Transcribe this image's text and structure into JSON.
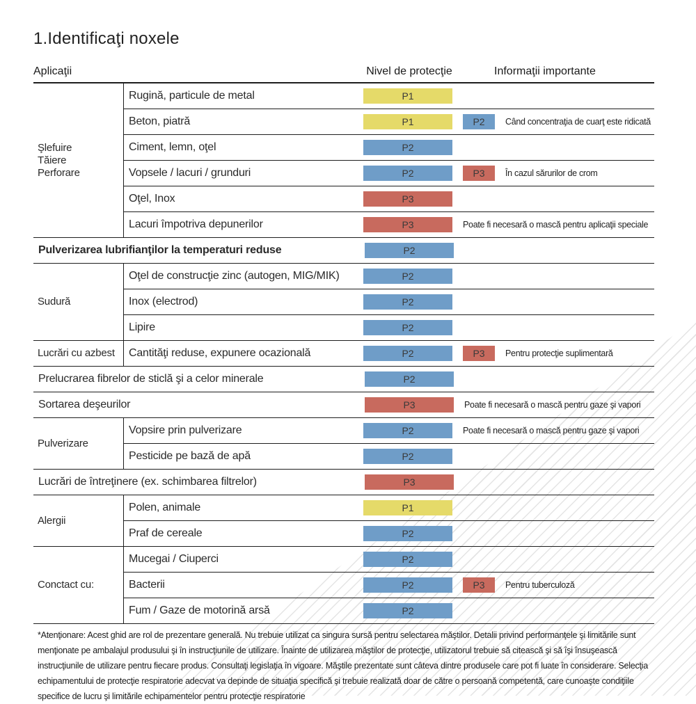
{
  "title": "1.Identificaţi noxele",
  "columns": {
    "applications": "Aplicaţii",
    "protection": "Nivel de protecţie",
    "info": "Informaţii importante"
  },
  "levels": {
    "P1": "#e5da69",
    "P2": "#6f9dc8",
    "P3": "#c86a5e"
  },
  "sections": [
    {
      "group": "Şlefuire\nTăiere\nPerforare",
      "rows": [
        {
          "label": "Rugină, particule de metal",
          "level": "P1"
        },
        {
          "label": "Beton, piatră",
          "level": "P1",
          "extra": "P2",
          "info": "Când concentraţia de cuarţ este ridicată"
        },
        {
          "label": "Ciment, lemn, oţel",
          "level": "P2"
        },
        {
          "label": "Vopsele / lacuri / grunduri",
          "level": "P2",
          "extra": "P3",
          "info": "În cazul sărurilor de crom"
        },
        {
          "label": "Oţel, Inox",
          "level": "P3"
        },
        {
          "label": "Lacuri împotriva depunerilor",
          "level": "P3",
          "info": "Poate fi necesară o mască pentru aplicaţii speciale"
        }
      ]
    },
    {
      "group": null,
      "rows": [
        {
          "label": "Pulverizarea lubrifianţilor la temperaturi reduse",
          "level": "P2",
          "bold": true
        }
      ]
    },
    {
      "group": "Sudură",
      "rows": [
        {
          "label": "Oţel de construcţie zinc (autogen, MIG/MIK)",
          "level": "P2"
        },
        {
          "label": "Inox (electrod)",
          "level": "P2"
        },
        {
          "label": "Lipire",
          "level": "P2"
        }
      ]
    },
    {
      "group": "Lucrări cu azbest",
      "rows": [
        {
          "label": "Cantităţi reduse, expunere ocazională",
          "level": "P2",
          "extra": "P3",
          "info": "Pentru protecţie suplimentară"
        }
      ]
    },
    {
      "group": null,
      "rows": [
        {
          "label": "Prelucrarea fibrelor de sticlă şi a celor minerale",
          "level": "P2"
        }
      ]
    },
    {
      "group": null,
      "rows": [
        {
          "label": "Sortarea deşeurilor",
          "level": "P3",
          "info": "Poate fi necesară o mască pentru gaze şi vapori"
        }
      ]
    },
    {
      "group": "Pulverizare",
      "rows": [
        {
          "label": "Vopsire prin pulverizare",
          "level": "P2",
          "info": "Poate fi necesară o mască pentru gaze şi vapori"
        },
        {
          "label": "Pesticide pe bază de apă",
          "level": "P2"
        }
      ]
    },
    {
      "group": null,
      "rows": [
        {
          "label": "Lucrări de întreţinere (ex. schimbarea filtrelor)",
          "level": "P3"
        }
      ]
    },
    {
      "group": "Alergii",
      "rows": [
        {
          "label": "Polen, animale",
          "level": "P1"
        },
        {
          "label": "Praf de cereale",
          "level": "P2"
        }
      ]
    },
    {
      "group": "Conctact cu:",
      "rows": [
        {
          "label": "Mucegai / Ciuperci",
          "level": "P2"
        },
        {
          "label": "Bacterii",
          "level": "P2",
          "extra": "P3",
          "info": "Pentru tuberculoză"
        },
        {
          "label": "Fum / Gaze de motorină arsă",
          "level": "P2"
        }
      ]
    }
  ],
  "footnote": "*Atenţionare: Acest ghid are rol de prezentare generală. Nu trebuie utilizat ca singura sursă pentru selectarea măştilor. Detalii privind performanţele şi limitările sunt menţionate pe ambalajul produsului şi în instrucţiunile de utilizare. Înainte de utilizarea măştilor de protecţie, utilizatorul trebuie să citească şi să îşi însuşească instrucţiunile de utilizare pentru fiecare produs. Consultaţi legislaţia în vigoare. Măştile prezentate sunt câteva dintre produsele care pot fi luate în considerare. Selecţia echipamentului de protecţie respiratorie adecvat va depinde de situaţia specifică şi trebuie realizată doar de către o persoană competentă, care cunoaşte condiţiile specifice de lucru şi limitările echipamentelor pentru protecţie respiratorie"
}
